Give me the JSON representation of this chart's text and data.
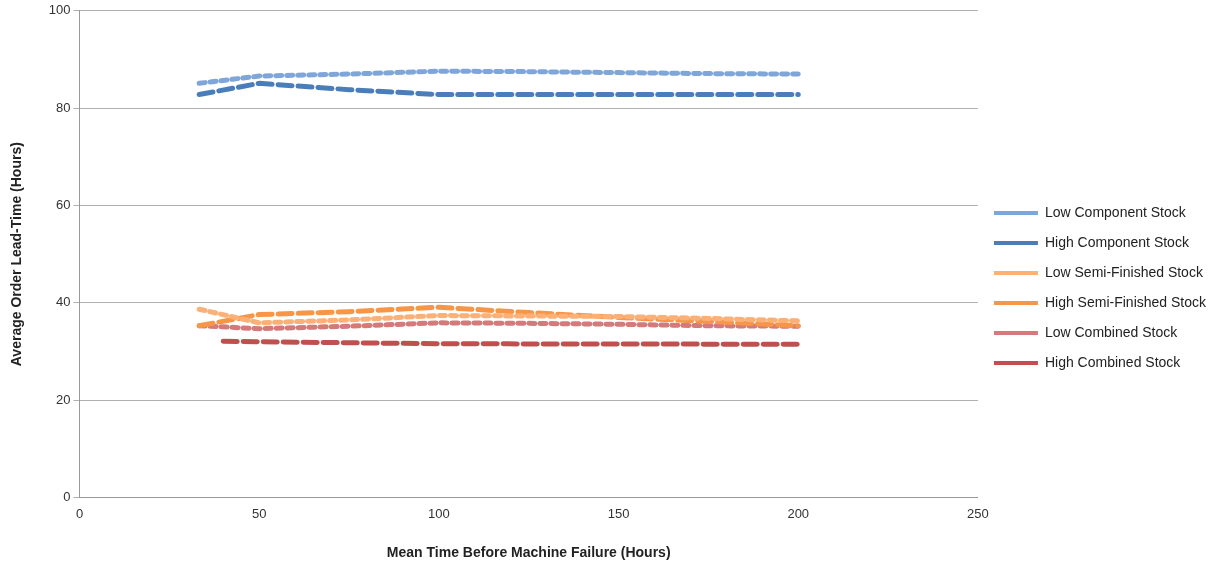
{
  "chart_data": {
    "type": "line",
    "xlabel": "Mean Time Before Machine Failure (Hours)",
    "ylabel": "Average Order Lead-Time (Hours)",
    "xlim": [
      0,
      250
    ],
    "xticks": [
      0,
      50,
      100,
      150,
      200,
      250
    ],
    "ylim": [
      0,
      100
    ],
    "yticks": [
      0,
      20,
      40,
      60,
      80,
      100
    ],
    "grid": "y",
    "legend": "right",
    "marker": "none",
    "series": [
      {
        "name": "Low Component Stock",
        "color": "#7ea6d9",
        "line_style": "dotted",
        "x": [
          33.3,
          50,
          75,
          100,
          125,
          150,
          175,
          200
        ],
        "values": [
          85.1,
          86.6,
          87.0,
          87.6,
          87.5,
          87.3,
          87.1,
          87.0
        ]
      },
      {
        "name": "High Component Stock",
        "color": "#4a7ebb",
        "line_style": "dashed",
        "x": [
          33.3,
          50,
          75,
          100,
          125,
          150,
          175,
          200
        ],
        "values": [
          82.8,
          85.1,
          83.8,
          82.8,
          82.8,
          82.8,
          82.8,
          82.8
        ]
      },
      {
        "name": "Low Semi-Finished Stock",
        "color": "#fbb077",
        "line_style": "dotted",
        "x": [
          33.3,
          50,
          75,
          100,
          125,
          150,
          175,
          200
        ],
        "values": [
          38.7,
          35.9,
          36.5,
          37.4,
          37.3,
          37.2,
          36.8,
          36.3
        ]
      },
      {
        "name": "High Semi-Finished Stock",
        "color": "#f79646",
        "line_style": "dashed",
        "x": [
          33.3,
          50,
          75,
          100,
          125,
          150,
          175,
          200
        ],
        "values": [
          35.3,
          37.6,
          38.2,
          39.1,
          38.0,
          37.0,
          36.2,
          35.3
        ]
      },
      {
        "name": "Low Combined Stock",
        "color": "#d47a7a",
        "line_style": "dotted",
        "x": [
          33.3,
          50,
          75,
          100,
          125,
          150,
          175,
          200
        ],
        "values": [
          35.3,
          34.7,
          35.2,
          35.9,
          35.8,
          35.6,
          35.3,
          35.2
        ]
      },
      {
        "name": "High Combined Stock",
        "color": "#c0504d",
        "line_style": "dashed",
        "x": [
          40,
          100,
          200
        ],
        "values": [
          32.1,
          31.6,
          31.5
        ]
      }
    ]
  }
}
